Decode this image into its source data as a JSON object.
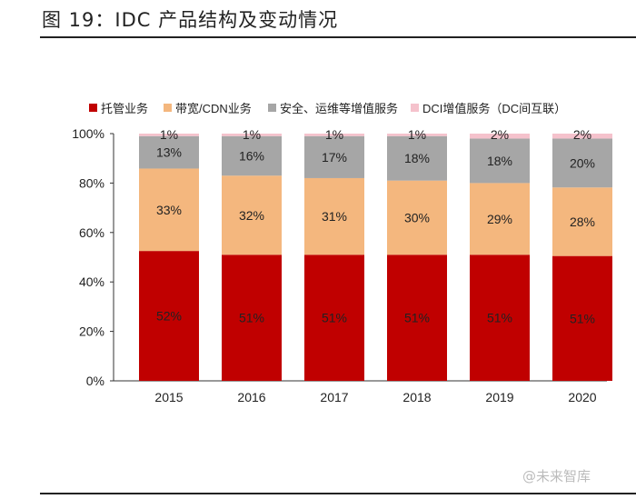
{
  "title": "图 19：IDC 产品结构及变动情况",
  "watermark": "@未来智库",
  "chart_data": {
    "type": "bar",
    "stacked": true,
    "categories": [
      "2015",
      "2016",
      "2017",
      "2018",
      "2019",
      "2020"
    ],
    "series": [
      {
        "name": "托管业务",
        "color": "#c00000",
        "values": [
          52,
          51,
          51,
          51,
          51,
          51
        ]
      },
      {
        "name": "带宽/CDN业务",
        "color": "#f4b77e",
        "values": [
          33,
          32,
          31,
          30,
          29,
          28
        ]
      },
      {
        "name": "安全、运维等增值服务",
        "color": "#a6a6a6",
        "values": [
          13,
          16,
          17,
          18,
          18,
          20
        ]
      },
      {
        "name": "DCI增值服务（DC间互联）",
        "color": "#f5c2cc",
        "values": [
          1,
          1,
          1,
          1,
          2,
          2
        ]
      }
    ],
    "ylim": [
      0,
      100
    ],
    "yticks": [
      "0%",
      "20%",
      "40%",
      "60%",
      "80%",
      "100%"
    ],
    "legend": "top",
    "grid": false,
    "data_labels": true
  }
}
